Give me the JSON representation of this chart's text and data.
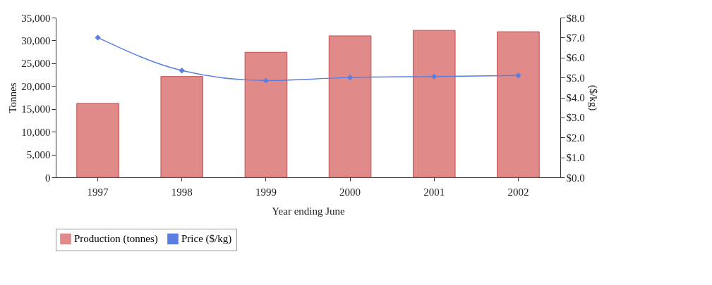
{
  "chart_data": {
    "type": "bar",
    "xlabel": "Year ending June",
    "ylabel": "Tonnes",
    "y2label": "($/kg)",
    "categories": [
      "1997",
      "1998",
      "1999",
      "2000",
      "2001",
      "2002"
    ],
    "series": [
      {
        "name": "Production (tonnes)",
        "color": "#e08a8a",
        "values": [
          16200,
          22100,
          27400,
          31000,
          32200,
          31900
        ]
      },
      {
        "name": "Price ($/kg)",
        "type": "line",
        "axis": "y2",
        "color": "#5b7fe0",
        "marker": "diamond",
        "values": [
          7.0,
          5.35,
          4.85,
          5.0,
          5.05,
          5.1
        ]
      }
    ],
    "ylim": [
      0,
      35000
    ],
    "yticks": [
      {
        "value": 0,
        "label": "0"
      },
      {
        "value": 5000,
        "label": "5,000"
      },
      {
        "value": 10000,
        "label": "10,000"
      },
      {
        "value": 15000,
        "label": "15,000"
      },
      {
        "value": 20000,
        "label": "20,000"
      },
      {
        "value": 25000,
        "label": "25,000"
      },
      {
        "value": 30000,
        "label": "30,000"
      },
      {
        "value": 35000,
        "label": "35,000"
      }
    ],
    "y2lim": [
      0,
      8
    ],
    "y2ticks": [
      {
        "value": 0,
        "label": "$0.0"
      },
      {
        "value": 1,
        "label": "$1.0"
      },
      {
        "value": 2,
        "label": "$2.0"
      },
      {
        "value": 3,
        "label": "$3.0"
      },
      {
        "value": 4,
        "label": "$4.0"
      },
      {
        "value": 5,
        "label": "$5.0"
      },
      {
        "value": 6,
        "label": "$6.0"
      },
      {
        "value": 7,
        "label": "$7.0"
      },
      {
        "value": 8,
        "label": "$8.0"
      }
    ],
    "grid": false,
    "legend": "bottom"
  }
}
